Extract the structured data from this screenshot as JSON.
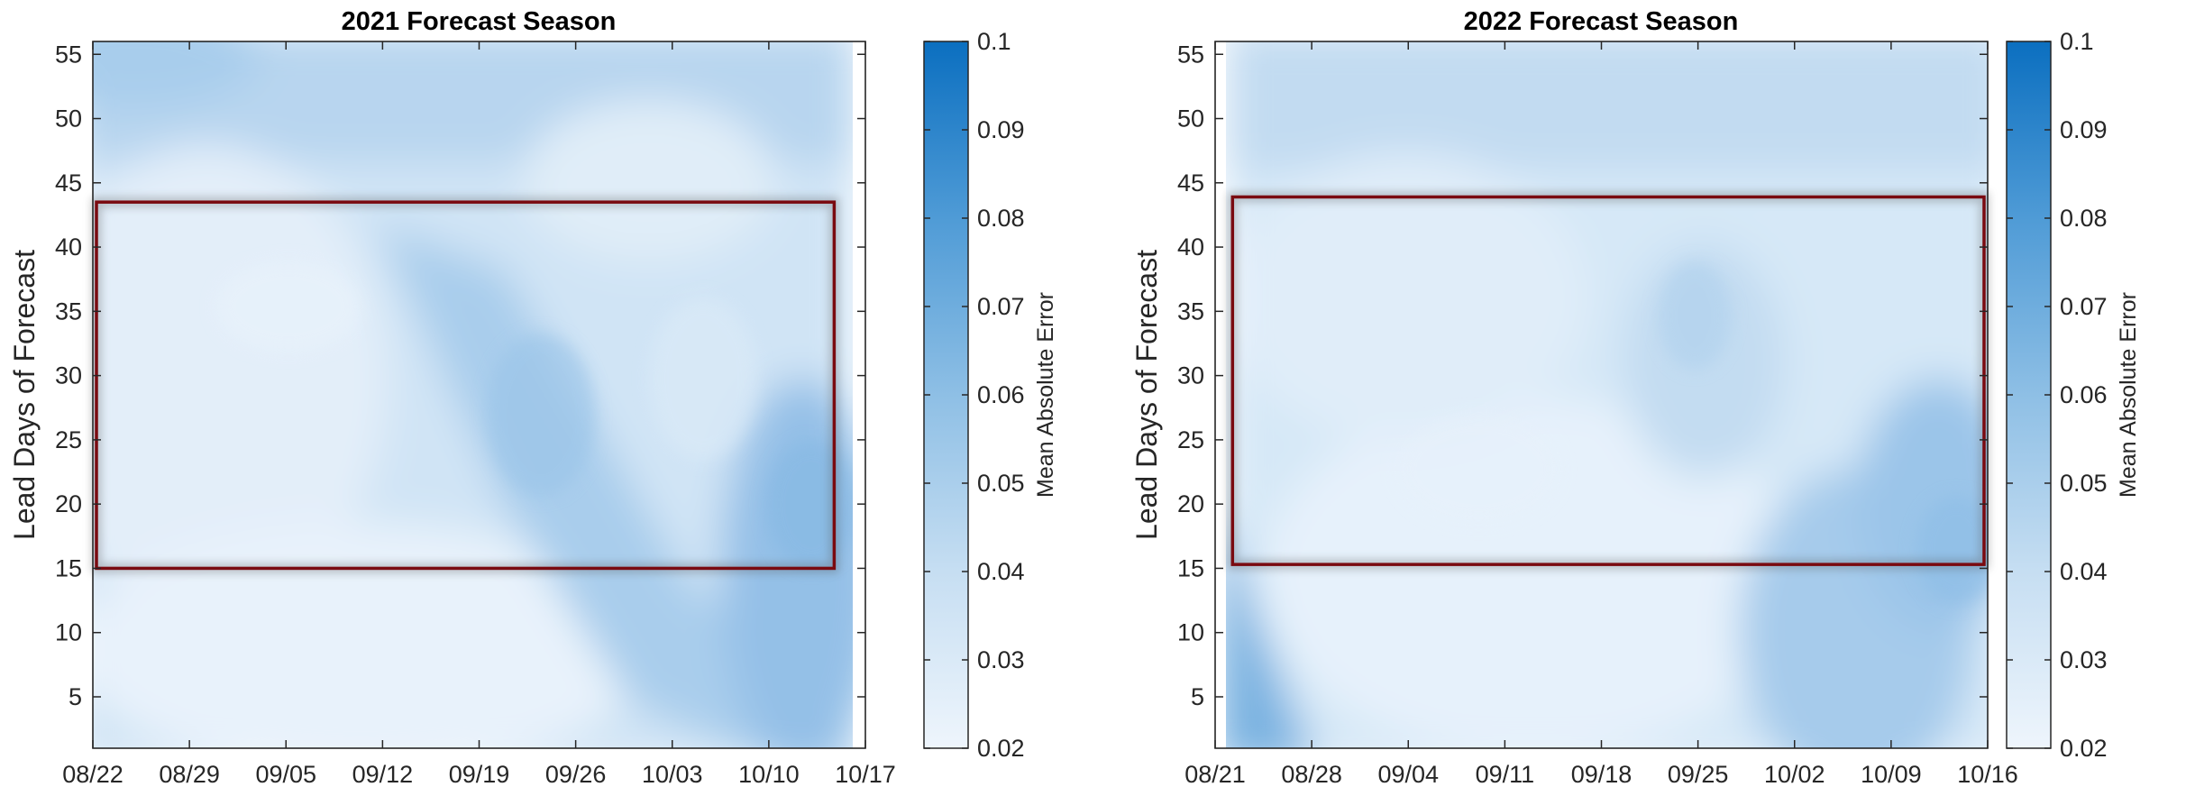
{
  "chart_data": [
    {
      "type": "heatmap",
      "title": "2021 Forecast Season",
      "xlabel": "",
      "ylabel": "Lead Days of Forecast",
      "x_tick_labels": [
        "08/22",
        "08/29",
        "09/05",
        "09/12",
        "09/19",
        "09/26",
        "10/03",
        "10/10",
        "10/17"
      ],
      "y_tick_labels": [
        "5",
        "10",
        "15",
        "20",
        "25",
        "30",
        "35",
        "40",
        "45",
        "50",
        "55"
      ],
      "ylim": [
        1,
        56
      ],
      "xlim": [
        "08/22",
        "10/17"
      ],
      "x_data_end": "10/15",
      "highlight_box": {
        "x_from": "08/22",
        "x_to": "10/15",
        "y_from": 15,
        "y_to": 43.5,
        "color": "#7a0a10"
      },
      "colorbar": {
        "label": "Mean Absolute Error",
        "range": [
          0.02,
          0.1
        ],
        "tick_labels": [
          "0.02",
          "0.03",
          "0.04",
          "0.05",
          "0.06",
          "0.07",
          "0.08",
          "0.09",
          "0.1"
        ],
        "color_low": "#eef5fc",
        "color_high": "#0b6fc0"
      },
      "grid": false
    },
    {
      "type": "heatmap",
      "title": "2022 Forecast Season",
      "xlabel": "",
      "ylabel": "Lead Days of Forecast",
      "x_tick_labels": [
        "08/21",
        "08/28",
        "09/04",
        "09/11",
        "09/18",
        "09/25",
        "10/02",
        "10/09",
        "10/16"
      ],
      "y_tick_labels": [
        "5",
        "10",
        "15",
        "20",
        "25",
        "30",
        "35",
        "40",
        "45",
        "50",
        "55"
      ],
      "ylim": [
        1,
        56
      ],
      "xlim": [
        "08/21",
        "10/16"
      ],
      "x_data_start": "08/22",
      "highlight_box": {
        "x_from": "08/22",
        "x_to": "10/16",
        "y_from": 15.3,
        "y_to": 43.9,
        "color": "#7a0a10"
      },
      "colorbar": {
        "label": "Mean Absolute Error",
        "range": [
          0.02,
          0.1
        ],
        "tick_labels": [
          "0.02",
          "0.03",
          "0.04",
          "0.05",
          "0.06",
          "0.07",
          "0.08",
          "0.09",
          "0.1"
        ],
        "color_low": "#eef5fc",
        "color_high": "#0b6fc0"
      },
      "grid": false
    }
  ]
}
